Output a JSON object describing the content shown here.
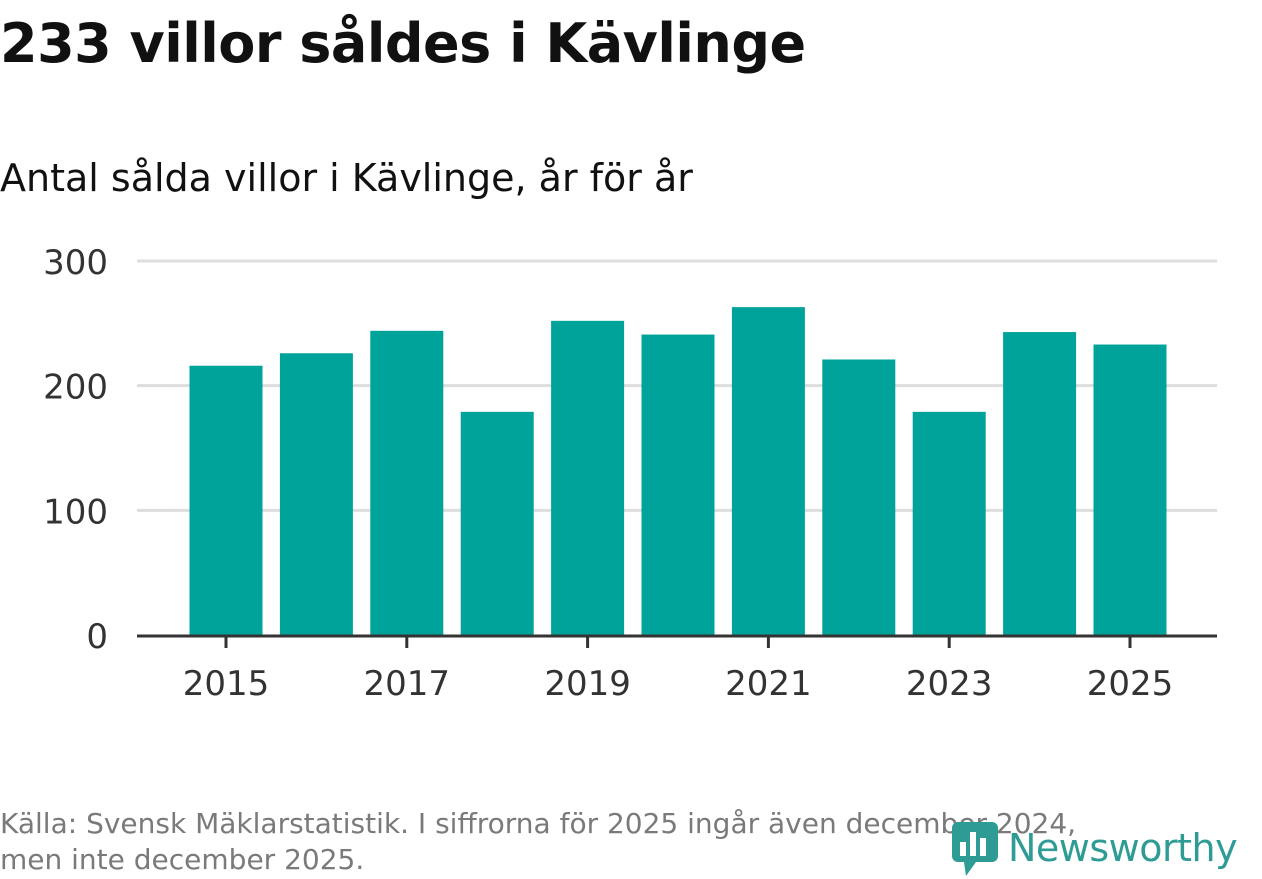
{
  "title": "233 villor såldes i Kävlinge",
  "subtitle": "Antal sålda villor i Kävlinge, år för år",
  "footer": {
    "source_line1": "Källa: Svensk Mäklarstatistik. I siffrorna för 2025 ingår även december 2024,",
    "source_line2": "men inte december 2025."
  },
  "logo": {
    "text": "Newsworthy",
    "icon": "newsworthy-logo-icon"
  },
  "colors": {
    "bar": "#00a39a",
    "grid": "#dddddd",
    "axis": "#333333",
    "tick_text": "#333333",
    "logo": "#2e9c95"
  },
  "chart_data": {
    "type": "bar",
    "categories": [
      "2015",
      "2016",
      "2017",
      "2018",
      "2019",
      "2020",
      "2021",
      "2022",
      "2023",
      "2024",
      "2025"
    ],
    "values": [
      216,
      226,
      244,
      179,
      252,
      241,
      263,
      221,
      179,
      243,
      233
    ],
    "x_tick_labels": [
      "2015",
      "2017",
      "2019",
      "2021",
      "2023",
      "2025"
    ],
    "y_ticks": [
      0,
      100,
      200,
      300
    ],
    "ylim": [
      0,
      300
    ],
    "grid": true,
    "legend": "none"
  }
}
